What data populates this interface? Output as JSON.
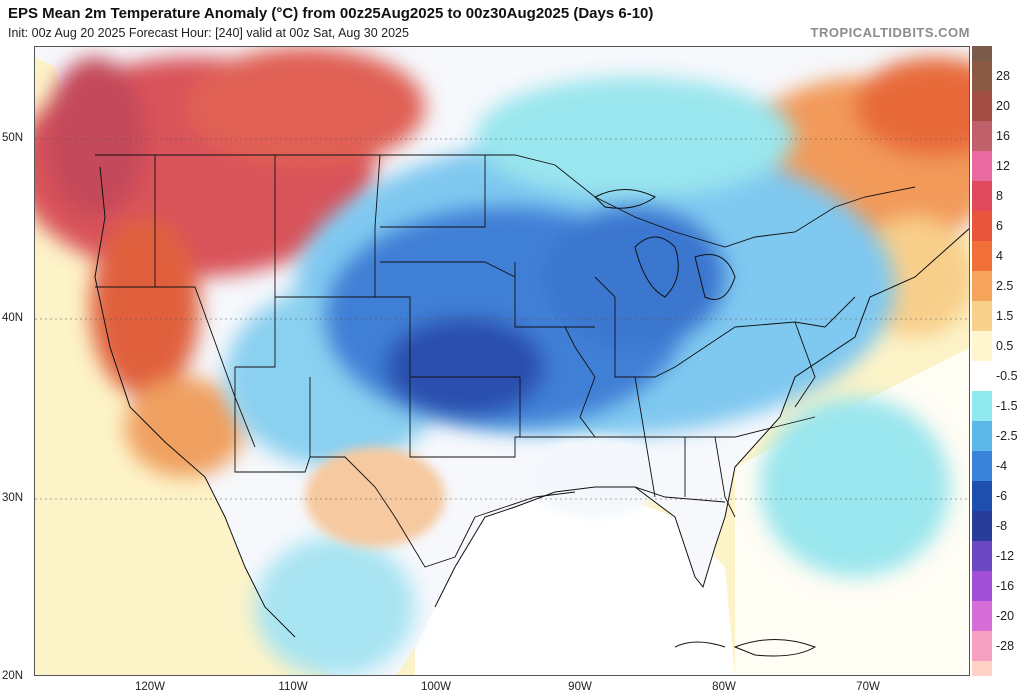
{
  "header": {
    "title": "EPS Mean 2m Temperature Anomaly (°C) from 00z25Aug2025 to 00z30Aug2025 (Days 6-10)",
    "subtitle": "Init: 00z Aug 20 2025   Forecast Hour: [240]   valid at 00z Sat, Aug 30 2025",
    "brand": "TROPICALTIDBITS.COM"
  },
  "map": {
    "lat_labels": [
      "50N",
      "40N",
      "30N",
      "20N"
    ],
    "lon_labels": [
      "120W",
      "110W",
      "100W",
      "90W",
      "80W",
      "70W"
    ],
    "colors": {
      "ocean_neutral": "#fffde6",
      "land_neutral": "#ffffff",
      "border": "#111111"
    }
  },
  "colorbar": {
    "label_items": [
      {
        "label": "28",
        "color": "#8a5a44"
      },
      {
        "label": "20",
        "color": "#a14d43"
      },
      {
        "label": "16",
        "color": "#c0606a"
      },
      {
        "label": "12",
        "color": "#e86a9e"
      },
      {
        "label": "8",
        "color": "#e04a5c"
      },
      {
        "label": "6",
        "color": "#e8553a"
      },
      {
        "label": "4",
        "color": "#f07038"
      },
      {
        "label": "2.5",
        "color": "#f6a35b"
      },
      {
        "label": "1.5",
        "color": "#f8d28a"
      },
      {
        "label": "0.5",
        "color": "#fff6d0"
      },
      {
        "label": "-0.5",
        "color": "#ffffff"
      },
      {
        "label": "-1.5",
        "color": "#8fe9ef"
      },
      {
        "label": "-2.5",
        "color": "#5bb8e8"
      },
      {
        "label": "-4",
        "color": "#3b82d9"
      },
      {
        "label": "-6",
        "color": "#1f4fae"
      },
      {
        "label": "-8",
        "color": "#2a3c9a"
      },
      {
        "label": "-12",
        "color": "#6a48c2"
      },
      {
        "label": "-16",
        "color": "#a04fd6"
      },
      {
        "label": "-20",
        "color": "#d76ed8"
      },
      {
        "label": "-28",
        "color": "#f6a0c2"
      }
    ],
    "top_color": "#7a5a4a",
    "bottom_color": "#ffd2c8"
  }
}
